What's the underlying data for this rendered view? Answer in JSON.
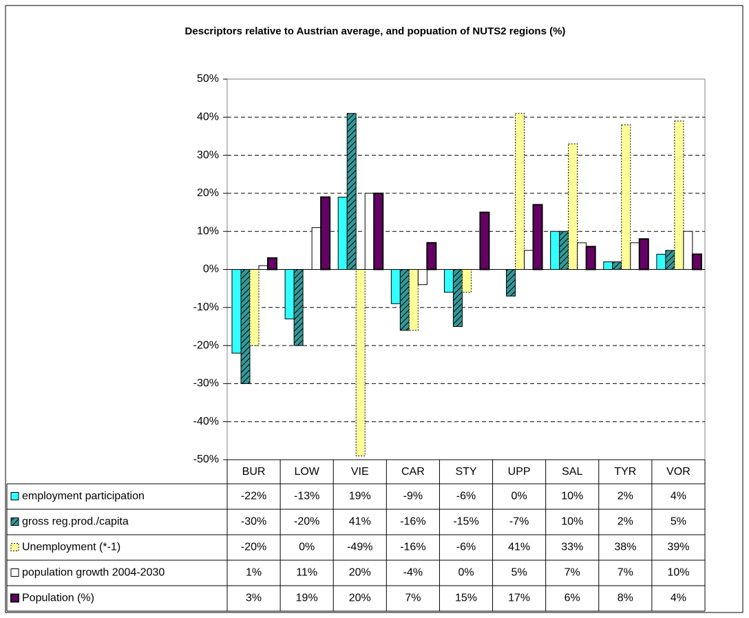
{
  "chart_data": {
    "type": "bar",
    "title": "Descriptors relative to Austrian average, and popuation of NUTS2 regions (%)",
    "categories": [
      "BUR",
      "LOW",
      "VIE",
      "CAR",
      "STY",
      "UPP",
      "SAL",
      "TYR",
      "VOR"
    ],
    "series": [
      {
        "name": "employment participation",
        "color": "#33ffff",
        "values": [
          -22,
          -13,
          19,
          -9,
          -6,
          0,
          10,
          2,
          4
        ],
        "value_labels": [
          "-22%",
          "-13%",
          "19%",
          "-9%",
          "-6%",
          "0%",
          "10%",
          "2%",
          "4%"
        ]
      },
      {
        "name": "gross reg.prod./capita",
        "color": "#339999",
        "pattern": "hatch",
        "values": [
          -30,
          -20,
          41,
          -16,
          -15,
          -7,
          10,
          2,
          5
        ],
        "value_labels": [
          "-30%",
          "-20%",
          "41%",
          "-16%",
          "-15%",
          "-7%",
          "10%",
          "2%",
          "5%"
        ]
      },
      {
        "name": "Unemployment (*-1)",
        "color": "#ffff99",
        "border": "dotted",
        "values": [
          -20,
          0,
          -49,
          -16,
          -6,
          41,
          33,
          38,
          39
        ],
        "value_labels": [
          "-20%",
          "0%",
          "-49%",
          "-16%",
          "-6%",
          "41%",
          "33%",
          "38%",
          "39%"
        ]
      },
      {
        "name": "population growth 2004-2030",
        "color": "#ffffff",
        "values": [
          1,
          11,
          20,
          -4,
          0,
          5,
          7,
          7,
          10
        ],
        "value_labels": [
          "1%",
          "11%",
          "20%",
          "-4%",
          "0%",
          "5%",
          "7%",
          "7%",
          "10%"
        ]
      },
      {
        "name": "Population (%)",
        "color": "#660066",
        "values": [
          3,
          19,
          20,
          7,
          15,
          17,
          6,
          8,
          4
        ],
        "value_labels": [
          "3%",
          "19%",
          "20%",
          "7%",
          "15%",
          "17%",
          "6%",
          "8%",
          "4%"
        ]
      }
    ],
    "ylim": [
      -50,
      50
    ],
    "yticks": [
      {
        "value": -50,
        "label": "-50%"
      },
      {
        "value": -40,
        "label": "-40%"
      },
      {
        "value": -30,
        "label": "-30%"
      },
      {
        "value": -20,
        "label": "-20%"
      },
      {
        "value": -10,
        "label": "-10%"
      },
      {
        "value": 0,
        "label": "0%"
      },
      {
        "value": 10,
        "label": "10%"
      },
      {
        "value": 20,
        "label": "20%"
      },
      {
        "value": 30,
        "label": "30%"
      },
      {
        "value": 40,
        "label": "40%"
      },
      {
        "value": 50,
        "label": "50%"
      }
    ],
    "grid": true
  }
}
